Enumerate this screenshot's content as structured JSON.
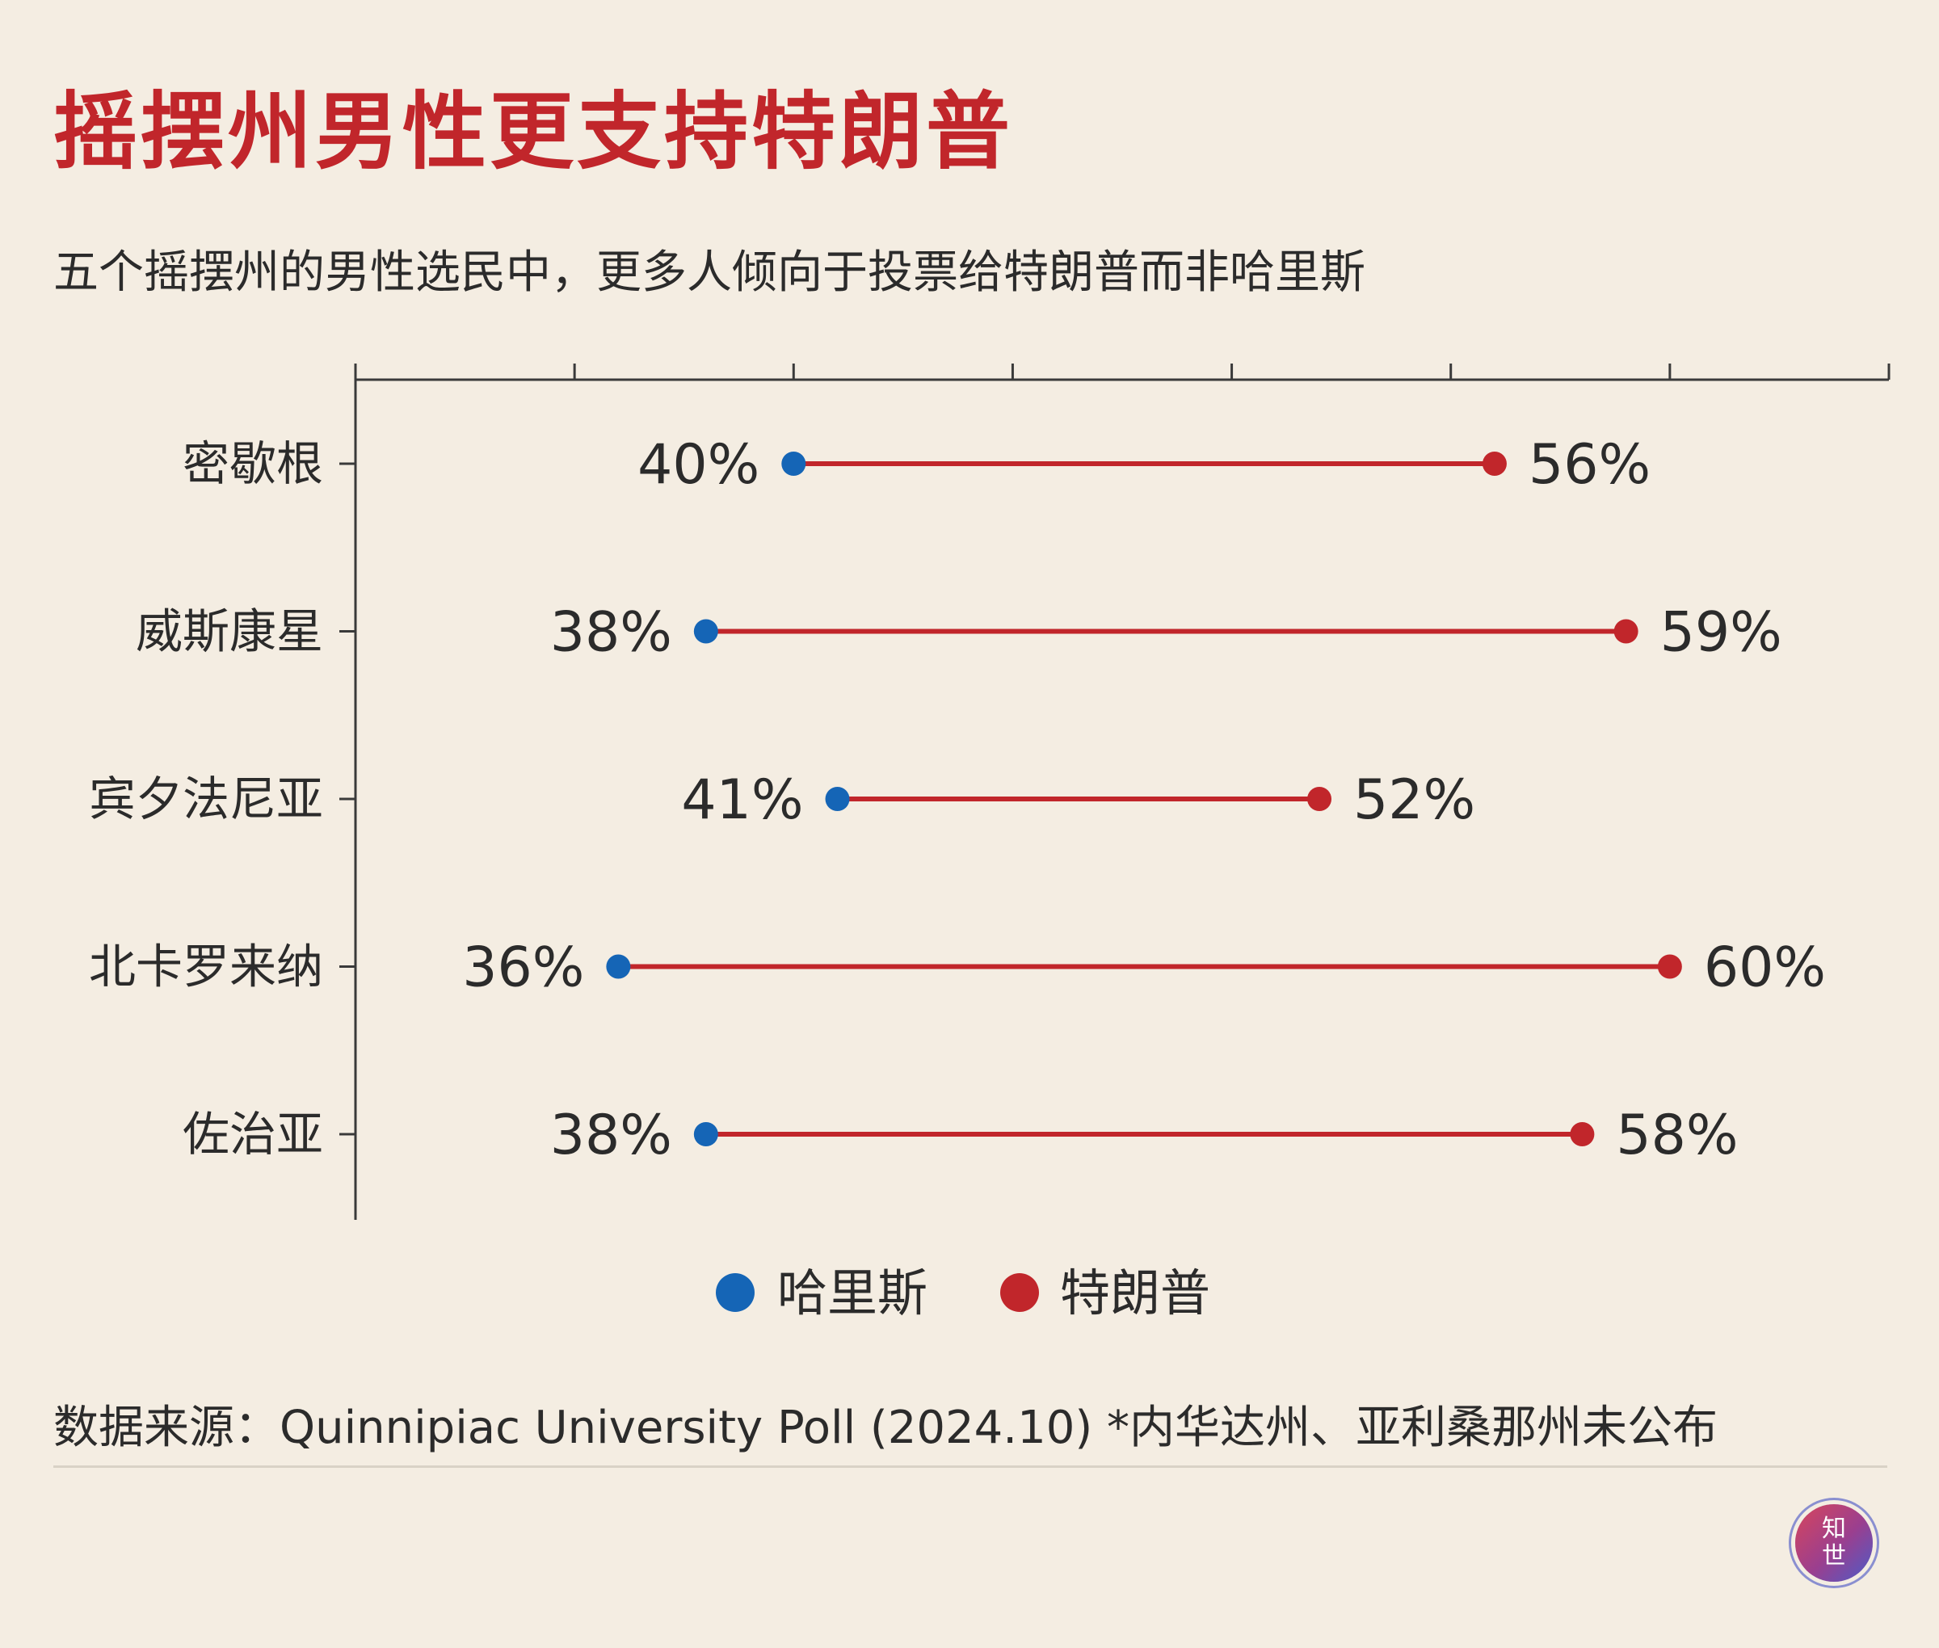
{
  "title": "摇摆州男性更支持特朗普",
  "subtitle": "五个摇摆州的男性选民中，更多人倾向于投票给特朗普而非哈里斯",
  "source": "数据来源：Quinnipiac University Poll (2024.10) *内华达州、亚利桑那州未公布",
  "logo": {
    "char1": "知",
    "char2": "世"
  },
  "colors": {
    "harris": "#1565b6",
    "trump": "#c1262b",
    "title": "#c1262b",
    "axis": "#3a3a3a",
    "background": "#f4ede2"
  },
  "chart_data": {
    "type": "dumbbell",
    "title": "摇摆州男性更支持特朗普",
    "subtitle": "五个摇摆州的男性选民中，更多人倾向于投票给特朗普而非哈里斯",
    "xlim": [
      30,
      65
    ],
    "x_ticks": [
      35,
      40,
      45,
      50,
      55,
      60,
      65
    ],
    "value_suffix": "%",
    "categories": [
      "密歇根",
      "威斯康星",
      "宾夕法尼亚",
      "北卡罗来纳",
      "佐治亚"
    ],
    "series": [
      {
        "name": "哈里斯",
        "color": "#1565b6",
        "values": [
          40,
          38,
          41,
          36,
          38
        ]
      },
      {
        "name": "特朗普",
        "color": "#c1262b",
        "values": [
          56,
          59,
          52,
          60,
          58
        ]
      }
    ],
    "legend": [
      "哈里斯",
      "特朗普"
    ],
    "legend_position": "bottom-center"
  }
}
